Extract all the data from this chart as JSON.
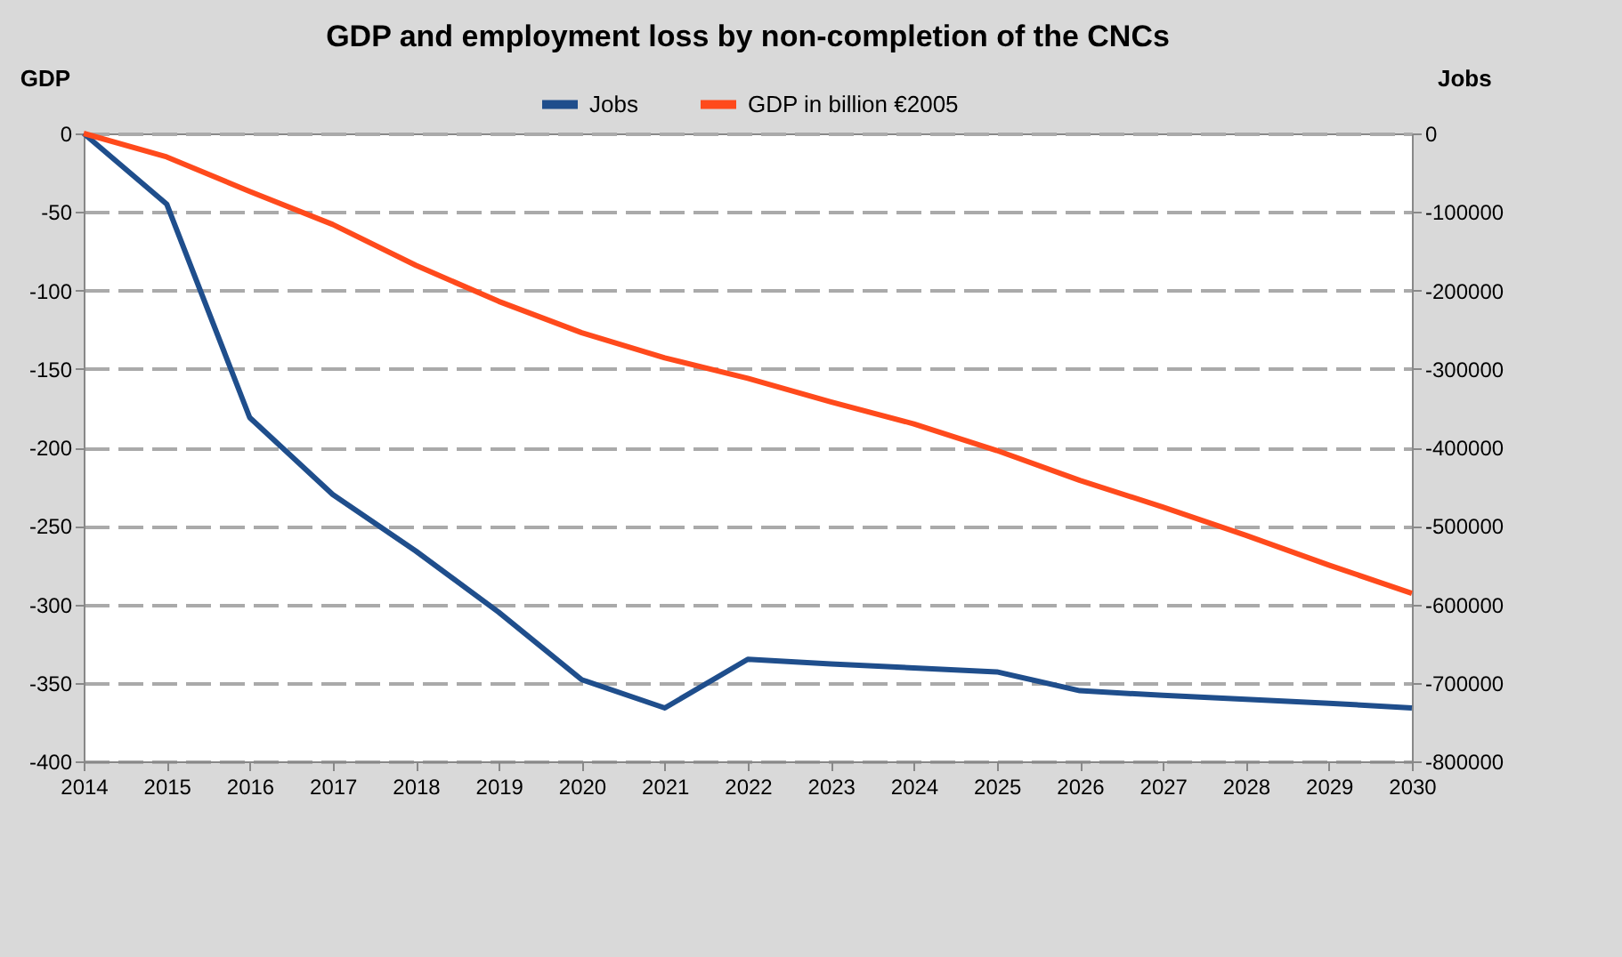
{
  "chart_data": {
    "type": "line",
    "title": "GDP and employment loss by non-completion of the CNCs",
    "ylabel": "GDP",
    "y2label": "Jobs",
    "categories": [
      "2014",
      "2015",
      "2016",
      "2017",
      "2018",
      "2019",
      "2020",
      "2021",
      "2022",
      "2023",
      "2024",
      "2025",
      "2026",
      "2027",
      "2028",
      "2029",
      "2030"
    ],
    "series": [
      {
        "name": "Jobs",
        "color": "#1f4e8c",
        "axis": "y2",
        "values": [
          0,
          -90000,
          -362000,
          -460000,
          -532000,
          -610000,
          -696000,
          -732000,
          -670000,
          -676000,
          -681000,
          -686000,
          -710000,
          -716000,
          -721000,
          -726000,
          -732000
        ]
      },
      {
        "name": "GDP in billion €2005",
        "color": "#ff4a1c",
        "values": [
          0,
          -15,
          -37,
          -58,
          -84,
          -107,
          -127,
          -143,
          -156,
          -171,
          -185,
          -202,
          -221,
          -238,
          -256,
          -275,
          -293
        ]
      }
    ],
    "ylim": [
      -400,
      0
    ],
    "yticks": [
      -400,
      -350,
      -300,
      -250,
      -200,
      -150,
      -100,
      -50,
      0
    ],
    "y2lim": [
      -800000,
      0
    ],
    "y2ticks": [
      -800000,
      -700000,
      -600000,
      -500000,
      -400000,
      -300000,
      -200000,
      -100000,
      0
    ],
    "grid": "y",
    "legend": "top"
  }
}
